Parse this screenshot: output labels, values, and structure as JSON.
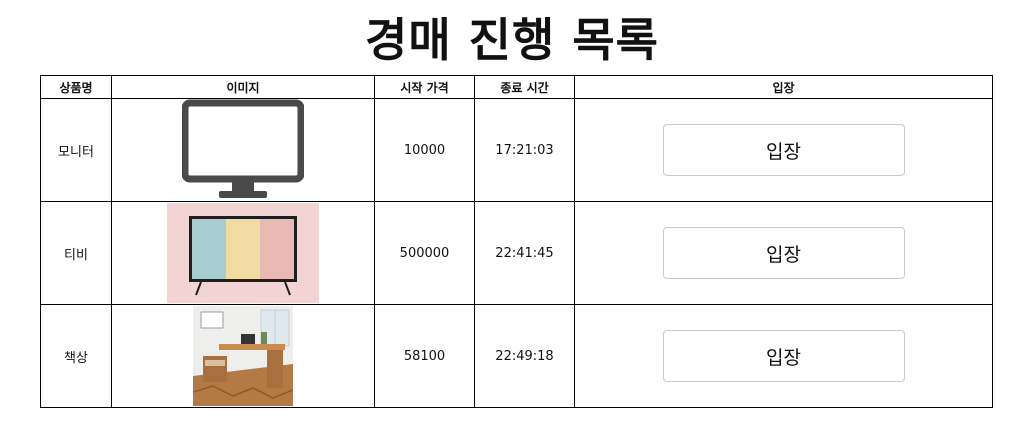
{
  "page": {
    "title": "경매 진행 목록"
  },
  "table": {
    "headers": [
      "상품명",
      "이미지",
      "시작 가격",
      "종료 시간",
      "입장"
    ],
    "rows": [
      {
        "name": "모니터",
        "image_icon": "monitor-image",
        "start_price": "10000",
        "end_time": "17:21:03",
        "button_label": "입장"
      },
      {
        "name": "티비",
        "image_icon": "tv-image",
        "start_price": "500000",
        "end_time": "22:41:45",
        "button_label": "입장"
      },
      {
        "name": "책상",
        "image_icon": "desk-image",
        "start_price": "58100",
        "end_time": "22:49:18",
        "button_label": "입장"
      }
    ]
  },
  "colors": {
    "monitor_frame": "#4a4a4a",
    "tv_background": "#f2d4d4",
    "tv_stripe_blue": "#a8cdd0",
    "tv_stripe_yellow": "#f0dca0",
    "tv_stripe_pink": "#e8b8b4",
    "desk_wood": "#b47a45"
  }
}
